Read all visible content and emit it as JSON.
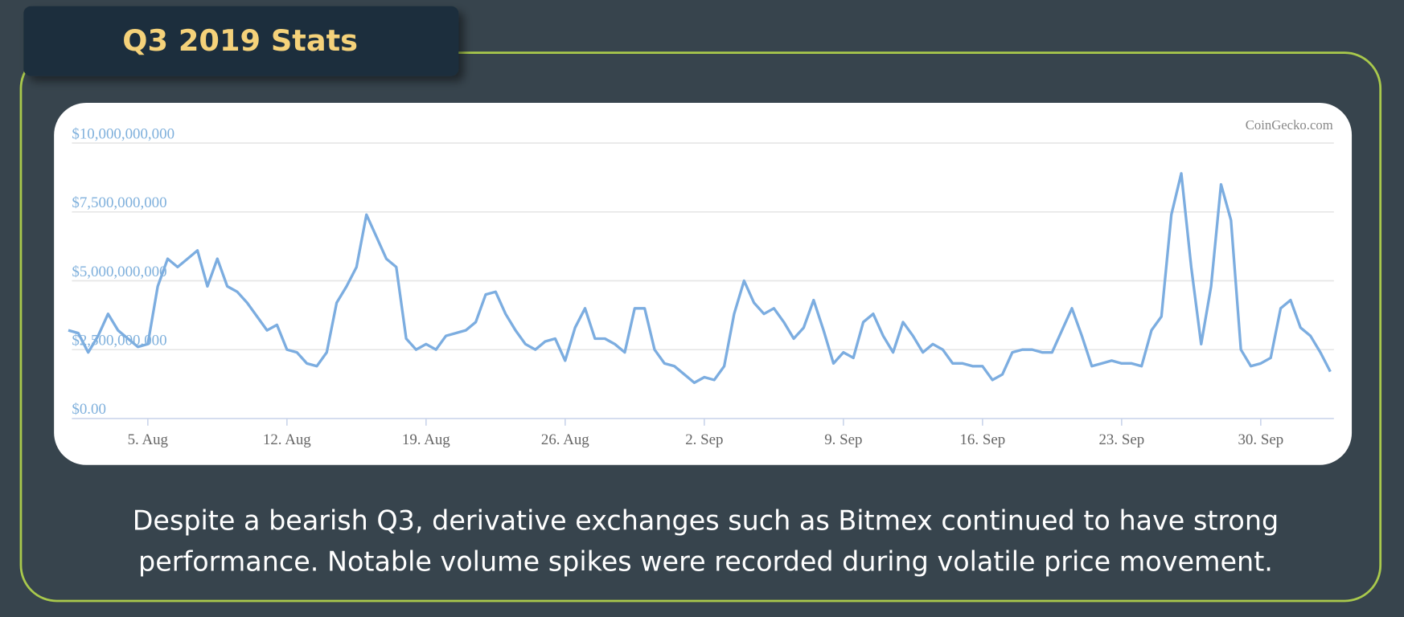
{
  "header": {
    "title": "Q3 2019 Stats"
  },
  "chart_data": {
    "type": "line",
    "credits": "CoinGecko.com",
    "color": "#7cade0",
    "grid": true,
    "ylim": [
      0,
      10000000000.0
    ],
    "yticks": [
      {
        "value": 0,
        "label": "$0.00"
      },
      {
        "value": 2500000000.0,
        "label": "$2,500,000,000"
      },
      {
        "value": 5000000000.0,
        "label": "$5,000,000,000"
      },
      {
        "value": 7500000000.0,
        "label": "$7,500,000,000"
      },
      {
        "value": 10000000000.0,
        "label": "$10,000,000,000"
      }
    ],
    "categories": [
      null,
      null,
      null,
      null,
      null,
      null,
      null,
      null,
      "5. Aug",
      null,
      null,
      null,
      null,
      null,
      null,
      null,
      null,
      null,
      null,
      null,
      null,
      null,
      "12. Aug",
      null,
      null,
      null,
      null,
      null,
      null,
      null,
      null,
      null,
      null,
      null,
      null,
      null,
      "19. Aug",
      null,
      null,
      null,
      null,
      null,
      null,
      null,
      null,
      null,
      null,
      null,
      null,
      null,
      "26. Aug",
      null,
      null,
      null,
      null,
      null,
      null,
      null,
      null,
      null,
      null,
      null,
      null,
      null,
      "2. Sep",
      null,
      null,
      null,
      null,
      null,
      null,
      null,
      null,
      null,
      null,
      null,
      null,
      null,
      "9. Sep",
      null,
      null,
      null,
      null,
      null,
      null,
      null,
      null,
      null,
      null,
      null,
      null,
      null,
      "16. Sep",
      null,
      null,
      null,
      null,
      null,
      null,
      null,
      null,
      null,
      null,
      null,
      null,
      null,
      "23. Sep",
      null,
      null,
      null,
      null,
      null,
      null,
      null,
      null,
      null,
      null,
      null,
      null,
      null,
      "30. Sep",
      null,
      null,
      null,
      null,
      null,
      null,
      null
    ],
    "values": [
      3200000000.0,
      3100000000.0,
      2400000000.0,
      3000000000.0,
      3800000000.0,
      3200000000.0,
      2900000000.0,
      2600000000.0,
      2700000000.0,
      4800000000.0,
      5800000000.0,
      5500000000.0,
      5800000000.0,
      6100000000.0,
      4800000000.0,
      5800000000.0,
      4800000000.0,
      4600000000.0,
      4200000000.0,
      3700000000.0,
      3200000000.0,
      3400000000.0,
      2500000000.0,
      2400000000.0,
      2000000000.0,
      1900000000.0,
      2400000000.0,
      4200000000.0,
      4800000000.0,
      5500000000.0,
      7400000000.0,
      6600000000.0,
      5800000000.0,
      5500000000.0,
      2900000000.0,
      2500000000.0,
      2700000000.0,
      2500000000.0,
      3000000000.0,
      3100000000.0,
      3200000000.0,
      3500000000.0,
      4500000000.0,
      4600000000.0,
      3800000000.0,
      3200000000.0,
      2700000000.0,
      2500000000.0,
      2800000000.0,
      2900000000.0,
      2100000000.0,
      3300000000.0,
      4000000000.0,
      2900000000.0,
      2900000000.0,
      2700000000.0,
      2400000000.0,
      4000000000.0,
      4000000000.0,
      2500000000.0,
      2000000000.0,
      1900000000.0,
      1600000000.0,
      1300000000.0,
      1500000000.0,
      1400000000.0,
      1900000000.0,
      3800000000.0,
      5000000000.0,
      4200000000.0,
      3800000000.0,
      4000000000.0,
      3500000000.0,
      2900000000.0,
      3300000000.0,
      4300000000.0,
      3200000000.0,
      2000000000.0,
      2400000000.0,
      2200000000.0,
      3500000000.0,
      3800000000.0,
      3000000000.0,
      2400000000.0,
      3500000000.0,
      3000000000.0,
      2400000000.0,
      2700000000.0,
      2500000000.0,
      2000000000.0,
      2000000000.0,
      1900000000.0,
      1900000000.0,
      1400000000.0,
      1600000000.0,
      2400000000.0,
      2500000000.0,
      2500000000.0,
      2400000000.0,
      2400000000.0,
      3200000000.0,
      4000000000.0,
      3000000000.0,
      1900000000.0,
      2000000000.0,
      2100000000.0,
      2000000000.0,
      2000000000.0,
      1900000000.0,
      3200000000.0,
      3700000000.0,
      7400000000.0,
      8900000000.0,
      5500000000.0,
      2700000000.0,
      4800000000.0,
      8500000000.0,
      7200000000.0,
      2500000000.0,
      1900000000.0,
      2000000000.0,
      2200000000.0,
      4000000000.0,
      4300000000.0,
      3300000000.0,
      3000000000.0,
      2400000000.0,
      1700000000.0
    ]
  },
  "caption": [
    "Despite a bearish Q3, derivative exchanges such as Bitmex continued to have strong",
    "performance. Notable volume spikes were recorded during volatile price movement."
  ]
}
